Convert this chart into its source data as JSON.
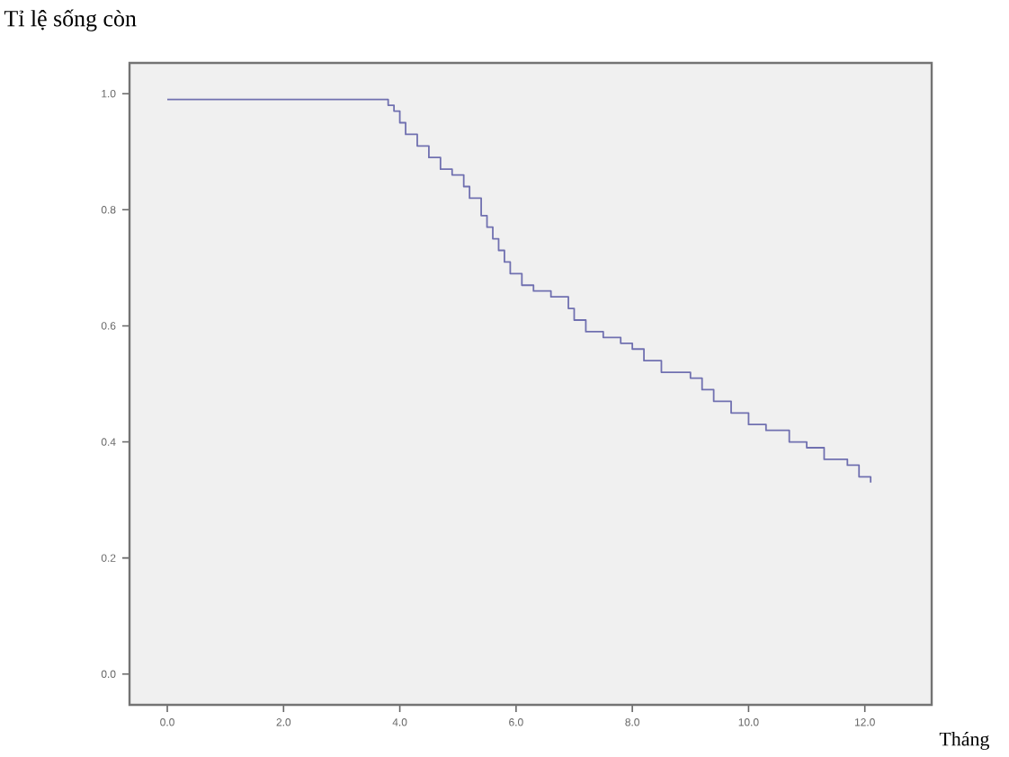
{
  "chart_data": {
    "type": "step",
    "xlabel": "Tháng",
    "ylabel": "Tỉ lệ sống còn",
    "x": [
      0,
      3.8,
      3.9,
      4.0,
      4.1,
      4.3,
      4.5,
      4.7,
      4.9,
      5.1,
      5.2,
      5.4,
      5.5,
      5.6,
      5.7,
      5.8,
      5.9,
      6.1,
      6.3,
      6.6,
      6.9,
      7.0,
      7.2,
      7.5,
      7.8,
      8.0,
      8.2,
      8.5,
      9.0,
      9.2,
      9.4,
      9.7,
      10.0,
      10.3,
      10.7,
      11.0,
      11.3,
      11.7,
      11.9,
      12.1
    ],
    "series": [
      {
        "color": "#7070b0",
        "values": [
          0.99,
          0.98,
          0.97,
          0.95,
          0.93,
          0.91,
          0.89,
          0.87,
          0.86,
          0.84,
          0.82,
          0.79,
          0.77,
          0.75,
          0.73,
          0.71,
          0.69,
          0.67,
          0.66,
          0.65,
          0.63,
          0.61,
          0.59,
          0.58,
          0.57,
          0.56,
          0.54,
          0.52,
          0.51,
          0.49,
          0.47,
          0.45,
          0.43,
          0.42,
          0.4,
          0.39,
          0.37,
          0.36,
          0.34,
          0.33
        ]
      }
    ],
    "xlim": [
      -0.65,
      13.15
    ],
    "ylim": [
      -0.053,
      1.053
    ],
    "xticks": [
      {
        "value": 0,
        "label": "0.0"
      },
      {
        "value": 2,
        "label": "2.0"
      },
      {
        "value": 4,
        "label": "4.0"
      },
      {
        "value": 6,
        "label": "6.0"
      },
      {
        "value": 8,
        "label": "8.0"
      },
      {
        "value": 10,
        "label": "10.0"
      },
      {
        "value": 12,
        "label": "12.0"
      }
    ],
    "yticks": [
      {
        "value": 0,
        "label": "0.0"
      },
      {
        "value": 0.2,
        "label": "0.2"
      },
      {
        "value": 0.4,
        "label": "0.4"
      },
      {
        "value": 0.6,
        "label": "0.6"
      },
      {
        "value": 0.8,
        "label": "0.8"
      },
      {
        "value": 1,
        "label": "1.0"
      }
    ],
    "grid": false
  }
}
